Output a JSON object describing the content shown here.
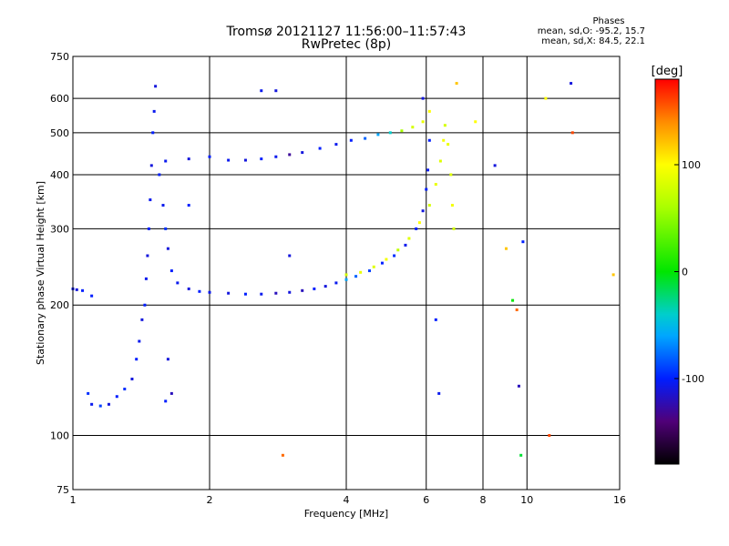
{
  "header": {
    "title": "Tromsø 20121127 11:56:00–11:57:43",
    "subtitle": "RwPretec (8p)"
  },
  "phases": {
    "title": "Phases",
    "line_o": "mean, sd,O: -95.2, 15.7",
    "line_x": "mean, sd,X:  84.5, 22.1"
  },
  "colorbar": {
    "label": "[deg]",
    "ticks": [
      {
        "value": 100,
        "label": "100"
      },
      {
        "value": 0,
        "label": "0"
      },
      {
        "value": -100,
        "label": "-100"
      }
    ],
    "range": [
      -180,
      180
    ]
  },
  "chart_data": {
    "type": "scatter",
    "title": "Tromsø 20121127 11:56:00–11:57:43",
    "subtitle": "RwPretec (8p)",
    "xlabel": "Frequency [MHz]",
    "ylabel": "Stationary phase Virtual Height [km]",
    "xscale": "log",
    "yscale": "log",
    "xlim": [
      1,
      16
    ],
    "ylim": [
      75,
      750
    ],
    "xticks": [
      1,
      2,
      4,
      6,
      8,
      10,
      16
    ],
    "yticks": [
      75,
      100,
      200,
      300,
      400,
      500,
      600,
      750
    ],
    "grid": true,
    "color_scale": "phase [deg], -180 to 180",
    "series": [
      {
        "comment_free_id": "o-mode-low",
        "points": [
          [
            1.0,
            218,
            -105
          ],
          [
            1.02,
            217,
            -110
          ],
          [
            1.05,
            216,
            -100
          ],
          [
            1.08,
            125,
            -95
          ],
          [
            1.1,
            118,
            -105
          ],
          [
            1.15,
            117,
            -90
          ],
          [
            1.2,
            118,
            -110
          ],
          [
            1.25,
            123,
            -100
          ],
          [
            1.3,
            128,
            -95
          ],
          [
            1.35,
            135,
            -110
          ],
          [
            1.38,
            150,
            -100
          ],
          [
            1.4,
            165,
            -105
          ],
          [
            1.42,
            185,
            -110
          ],
          [
            1.44,
            200,
            -100
          ],
          [
            1.45,
            230,
            -105
          ],
          [
            1.46,
            260,
            -110
          ],
          [
            1.47,
            300,
            -100
          ],
          [
            1.48,
            350,
            -105
          ],
          [
            1.49,
            420,
            -110
          ],
          [
            1.5,
            500,
            -100
          ],
          [
            1.51,
            560,
            -105
          ],
          [
            1.52,
            640,
            -110
          ],
          [
            1.55,
            400,
            -100
          ],
          [
            1.58,
            340,
            -105
          ],
          [
            1.6,
            300,
            -95
          ],
          [
            1.62,
            270,
            -110
          ],
          [
            1.65,
            240,
            -100
          ],
          [
            1.7,
            225,
            -105
          ],
          [
            1.8,
            218,
            -110
          ],
          [
            1.9,
            215,
            -100
          ],
          [
            2.0,
            214,
            -105
          ],
          [
            2.2,
            213,
            -110
          ],
          [
            2.4,
            212,
            -100
          ],
          [
            2.6,
            212,
            -105
          ],
          [
            2.8,
            213,
            -120
          ],
          [
            3.0,
            214,
            -110
          ],
          [
            3.2,
            216,
            -120
          ],
          [
            3.4,
            218,
            -100
          ],
          [
            3.6,
            221,
            -110
          ],
          [
            3.8,
            225,
            -105
          ],
          [
            4.0,
            229,
            -60
          ],
          [
            4.2,
            233,
            -80
          ],
          [
            4.5,
            240,
            -90
          ],
          [
            4.8,
            250,
            -100
          ],
          [
            5.1,
            260,
            -95
          ],
          [
            5.4,
            275,
            -105
          ],
          [
            5.7,
            300,
            -100
          ],
          [
            5.9,
            330,
            -110
          ],
          [
            6.0,
            370,
            -100
          ],
          [
            6.05,
            410,
            -105
          ],
          [
            6.1,
            480,
            -100
          ]
        ]
      },
      {
        "comment_free_id": "x-mode-low",
        "points": [
          [
            4.0,
            235,
            80
          ],
          [
            4.3,
            238,
            90
          ],
          [
            4.6,
            245,
            85
          ],
          [
            4.9,
            255,
            95
          ],
          [
            5.2,
            268,
            70
          ],
          [
            5.5,
            285,
            85
          ],
          [
            5.8,
            310,
            100
          ],
          [
            6.1,
            340,
            80
          ],
          [
            6.3,
            380,
            90
          ],
          [
            6.45,
            430,
            85
          ],
          [
            6.55,
            480,
            95
          ],
          [
            6.6,
            520,
            80
          ],
          [
            6.7,
            470,
            90
          ],
          [
            6.8,
            400,
            85
          ],
          [
            6.85,
            340,
            95
          ],
          [
            6.9,
            300,
            80
          ]
        ]
      },
      {
        "comment_free_id": "upper-trace",
        "points": [
          [
            1.6,
            430,
            -105
          ],
          [
            1.8,
            435,
            -110
          ],
          [
            2.0,
            440,
            -100
          ],
          [
            2.2,
            432,
            -105
          ],
          [
            2.4,
            432,
            -110
          ],
          [
            2.6,
            435,
            -100
          ],
          [
            2.8,
            440,
            -105
          ],
          [
            3.0,
            445,
            -130
          ],
          [
            3.2,
            450,
            -110
          ],
          [
            3.5,
            460,
            -100
          ],
          [
            3.8,
            470,
            -105
          ],
          [
            4.1,
            480,
            -100
          ],
          [
            4.4,
            485,
            -80
          ],
          [
            4.7,
            495,
            -60
          ],
          [
            5.0,
            500,
            -40
          ],
          [
            5.3,
            505,
            60
          ],
          [
            5.6,
            515,
            80
          ],
          [
            5.9,
            530,
            90
          ],
          [
            6.1,
            560,
            100
          ]
        ]
      },
      {
        "comment_free_id": "scattered",
        "points": [
          [
            1.6,
            120,
            -100
          ],
          [
            1.62,
            150,
            -110
          ],
          [
            1.65,
            125,
            -120
          ],
          [
            1.1,
            210,
            -100
          ],
          [
            2.6,
            625,
            -105
          ],
          [
            2.8,
            625,
            -110
          ],
          [
            2.9,
            90,
            150
          ],
          [
            3.0,
            260,
            -110
          ],
          [
            1.8,
            340,
            -100
          ],
          [
            5.9,
            600,
            -110
          ],
          [
            6.3,
            185,
            -100
          ],
          [
            6.4,
            125,
            -105
          ],
          [
            7.0,
            650,
            120
          ],
          [
            7.7,
            530,
            100
          ],
          [
            8.5,
            420,
            -110
          ],
          [
            9.0,
            270,
            120
          ],
          [
            9.3,
            205,
            0
          ],
          [
            9.5,
            195,
            150
          ],
          [
            9.6,
            130,
            -120
          ],
          [
            9.7,
            90,
            -10
          ],
          [
            9.8,
            280,
            -100
          ],
          [
            11.0,
            600,
            100
          ],
          [
            11.2,
            100,
            160
          ],
          [
            12.5,
            650,
            -110
          ],
          [
            12.6,
            500,
            160
          ],
          [
            15.5,
            235,
            120
          ]
        ]
      }
    ]
  }
}
